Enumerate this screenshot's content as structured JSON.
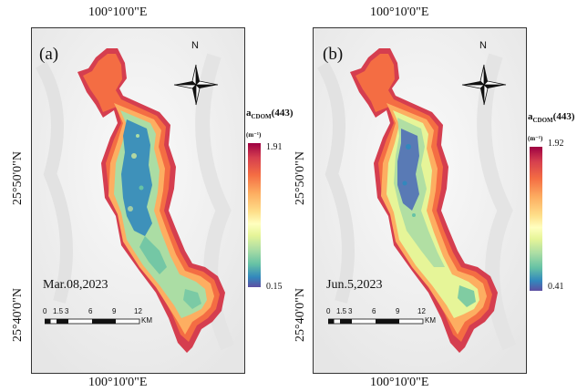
{
  "coords": {
    "top": "100°10'0\"E",
    "bottom": "100°10'0\"E",
    "lat_upper": "25°50'0\"N",
    "lat_lower": "25°40'0\"N"
  },
  "panels": [
    {
      "label": "(a)",
      "date": "Mar.08,2023",
      "north": "N",
      "legend": {
        "title": "a",
        "sub": "CDOM",
        "wave": "(443)",
        "unit": "(m⁻¹)",
        "max": "1.91",
        "min": "0.15"
      },
      "scale": {
        "ticks": [
          "0",
          "1.5",
          "3",
          "6",
          "9",
          "12"
        ],
        "unit": "KM"
      }
    },
    {
      "label": "(b)",
      "date": "Jun.5,2023",
      "north": "N",
      "legend": {
        "title": "a",
        "sub": "CDOM",
        "wave": "(443)",
        "unit": "(m⁻¹)",
        "max": "1.92",
        "min": "0.41"
      },
      "scale": {
        "ticks": [
          "0",
          "1.5",
          "3",
          "6",
          "9",
          "12"
        ],
        "unit": "KM"
      }
    }
  ],
  "colors": {
    "edge": "#d53e4f",
    "ring": "#f46d43",
    "mid": "#fdae61",
    "inner": "#e6f598",
    "core_a": "#3288bd",
    "core_b": "#4a68b8"
  }
}
